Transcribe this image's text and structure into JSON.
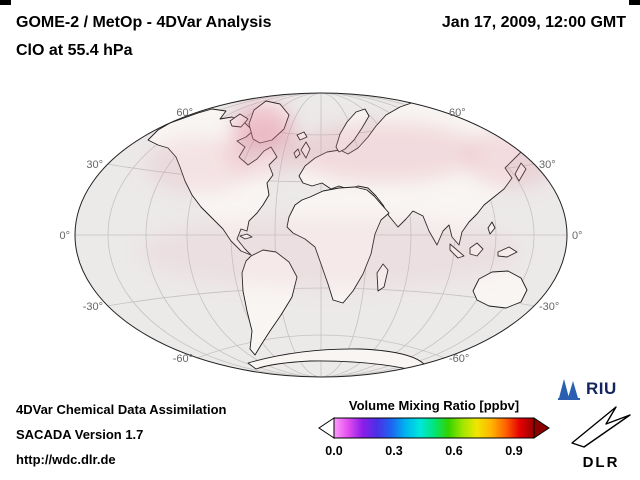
{
  "header": {
    "title_line1": "GOME-2 / MetOp - 4DVar Analysis",
    "title_line2": "ClO at 55.4 hPa",
    "datetime": "Jan 17, 2009, 12:00 GMT"
  },
  "map": {
    "lat_labels": [
      "60°",
      "30°",
      "0°",
      "-30°",
      "-60°"
    ],
    "ocean_color": "#ece9e9",
    "land_color": "#f8f5f3",
    "field_tint_color": "#e08ca0"
  },
  "colorbar": {
    "title": "Volume Mixing Ratio [ppbv]",
    "ticks": [
      "0.0",
      "0.3",
      "0.6",
      "0.9"
    ],
    "min_value": 0.0,
    "max_value": 1.0,
    "underflow_color": "#ffffff",
    "overflow_color": "#8b0000",
    "rainbow": [
      "#ff9cff",
      "#e24df0",
      "#8c1ee8",
      "#4b2fe8",
      "#1e64f0",
      "#00b4f0",
      "#00e6dc",
      "#00e67a",
      "#32d200",
      "#a0e600",
      "#f0e600",
      "#ffb400",
      "#ff6400",
      "#e60000",
      "#960000"
    ]
  },
  "footer": {
    "line1": "4DVar Chemical Data Assimilation",
    "line2": "SACADA Version 1.7",
    "line3": "http://wdc.dlr.de"
  },
  "logos": {
    "riu_text": "RIU",
    "dlr_text": "DLR"
  }
}
